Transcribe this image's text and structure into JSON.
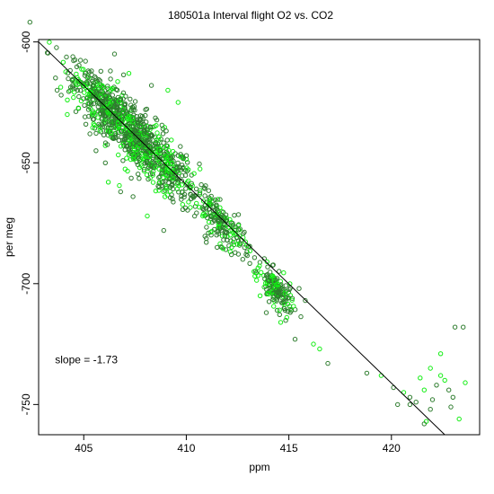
{
  "chart_data": {
    "type": "scatter",
    "title": "180501a   Interval flight O2 vs. CO2",
    "xlabel": "ppm",
    "ylabel": "per meg",
    "xlim": [
      402.8,
      424.3
    ],
    "ylim": [
      -762.5,
      -599.0
    ],
    "x_ticks": [
      405,
      410,
      415,
      420
    ],
    "y_ticks": [
      -600,
      -650,
      -700,
      -750
    ],
    "x_tick_labels": [
      "405",
      "410",
      "415",
      "420"
    ],
    "y_tick_labels": [
      "-600",
      "-650",
      "-700",
      "-750"
    ],
    "grid": false,
    "legend": "none",
    "annotation": {
      "label": "slope = ",
      "value": "-1.73",
      "x": 403.6,
      "y": -733
    },
    "regression_line": {
      "slope": -1.73,
      "x1": 402.8,
      "y1": -600.0,
      "x2": 422.6,
      "y2": -762.5
    },
    "colors": {
      "outer": "#2f7d2f",
      "inner": "#11ee11",
      "line": "#000000"
    },
    "clusters": [
      {
        "name": "main-cluster",
        "center": [
          407.6,
          -640
        ],
        "spread_along": 3.0,
        "spread_across": 6.5,
        "count": 900
      },
      {
        "name": "upper-left",
        "center": [
          405.8,
          -624
        ],
        "spread_along": 1.2,
        "spread_across": 4.0,
        "count": 150
      },
      {
        "name": "mid-cluster",
        "center": [
          411.8,
          -676
        ],
        "spread_along": 1.3,
        "spread_across": 4.0,
        "count": 180
      },
      {
        "name": "lower-cluster",
        "center": [
          414.4,
          -703
        ],
        "spread_along": 0.8,
        "spread_across": 3.5,
        "count": 160
      }
    ],
    "points": [
      [
        403.7,
        -620
      ],
      [
        403.9,
        -622
      ],
      [
        404.2,
        -624
      ],
      [
        404.5,
        -623
      ],
      [
        404.7,
        -620
      ],
      [
        405.0,
        -618
      ],
      [
        406.5,
        -605
      ],
      [
        406.3,
        -612
      ],
      [
        407.2,
        -613
      ],
      [
        408.3,
        -618
      ],
      [
        409.1,
        -620
      ],
      [
        409.6,
        -625
      ],
      [
        405.3,
        -638
      ],
      [
        405.6,
        -645
      ],
      [
        406.2,
        -658
      ],
      [
        406.8,
        -662
      ],
      [
        407.4,
        -664
      ],
      [
        408.1,
        -672
      ],
      [
        408.9,
        -678
      ],
      [
        410.2,
        -663
      ],
      [
        410.8,
        -672
      ],
      [
        411.5,
        -685
      ],
      [
        412.2,
        -688
      ],
      [
        413.3,
        -695
      ],
      [
        413.6,
        -705
      ],
      [
        413.9,
        -712
      ],
      [
        414.9,
        -714
      ],
      [
        415.5,
        -702
      ],
      [
        415.8,
        -707
      ],
      [
        414.6,
        -716
      ],
      [
        415.3,
        -723
      ],
      [
        416.2,
        -725
      ],
      [
        416.5,
        -727
      ],
      [
        416.9,
        -733
      ],
      [
        418.8,
        -737
      ],
      [
        419.5,
        -738
      ],
      [
        420.1,
        -743
      ],
      [
        420.3,
        -750
      ],
      [
        420.6,
        -745
      ],
      [
        420.9,
        -747
      ],
      [
        421.2,
        -749
      ],
      [
        421.6,
        -744
      ],
      [
        421.9,
        -752
      ],
      [
        422.0,
        -748
      ],
      [
        421.4,
        -739
      ],
      [
        421.9,
        -735
      ],
      [
        422.2,
        -742
      ],
      [
        422.4,
        -738
      ],
      [
        422.8,
        -744
      ],
      [
        423.0,
        -747
      ],
      [
        423.3,
        -756
      ],
      [
        422.9,
        -751
      ],
      [
        421.7,
        -757
      ],
      [
        423.6,
        -741
      ],
      [
        423.1,
        -718
      ],
      [
        423.5,
        -718
      ],
      [
        422.4,
        -729
      ],
      [
        421.6,
        -758
      ],
      [
        420.9,
        -750
      ],
      [
        422.6,
        -740
      ]
    ]
  }
}
